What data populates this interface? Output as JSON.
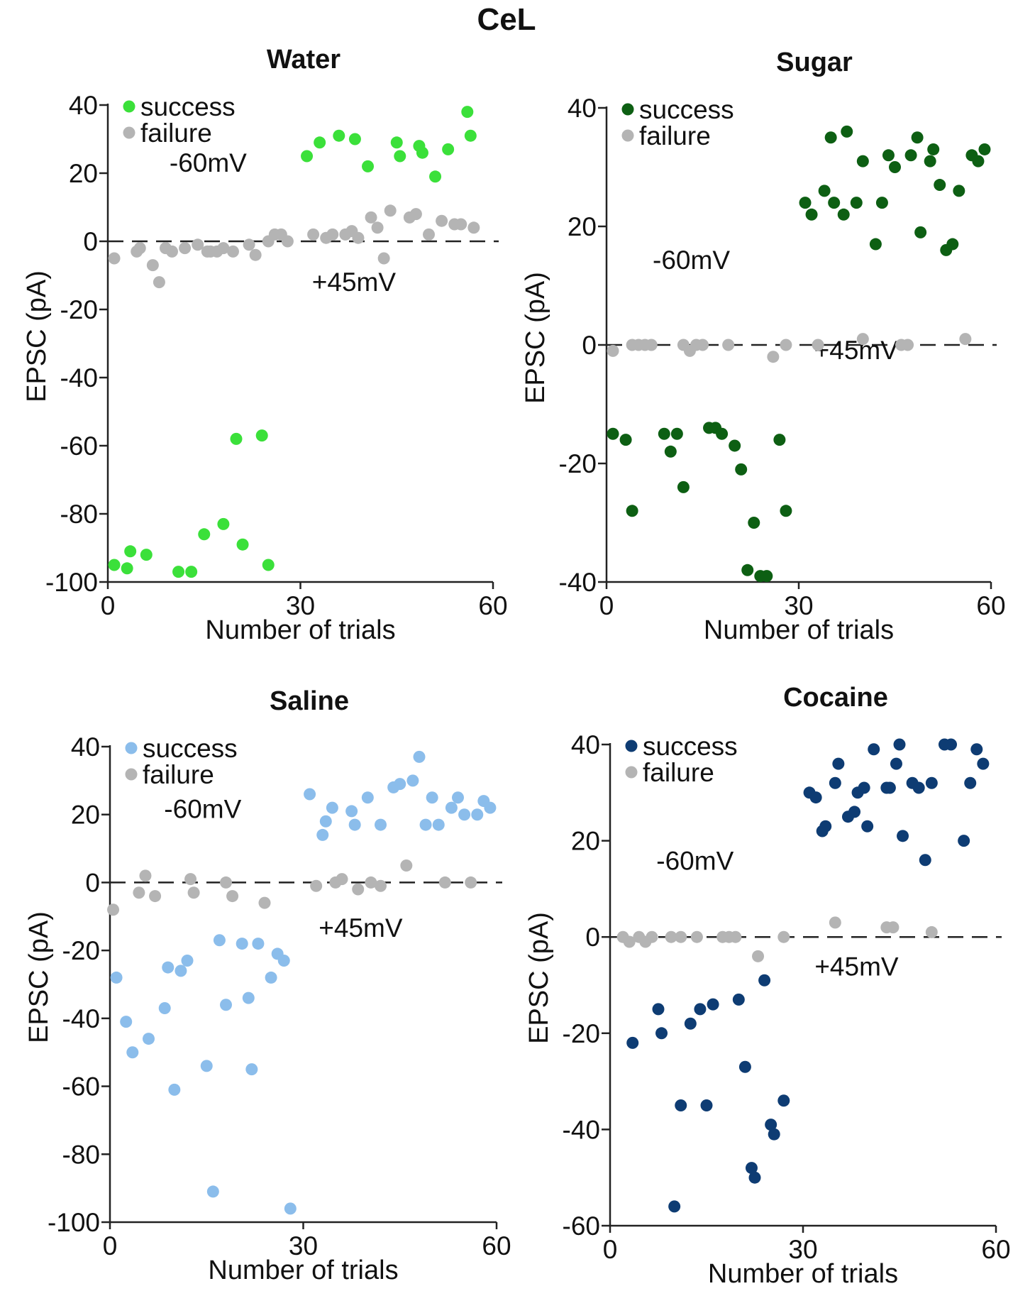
{
  "figure": {
    "title": "CeL"
  },
  "colors": {
    "failure": "#b4b4b4",
    "axis": "#222222",
    "zero_line": "#222222"
  },
  "chart_data": [
    {
      "type": "scatter",
      "title": "Water",
      "xlabel": "Number of trials",
      "ylabel": "EPSC (pA)",
      "xlim": [
        0,
        60
      ],
      "ylim": [
        -100,
        40
      ],
      "xticks": [
        0,
        30,
        60
      ],
      "yticks": [
        40,
        20,
        0,
        -20,
        -40,
        -60,
        -80,
        -100
      ],
      "legend_position": "top-left",
      "annotations": [
        "-60mV",
        "+45mV"
      ],
      "dashed_zero_line": true,
      "series": [
        {
          "name": "success",
          "color": "#3be03a",
          "points": [
            [
              1,
              -95
            ],
            [
              3,
              -96
            ],
            [
              3.5,
              -91
            ],
            [
              6,
              -92
            ],
            [
              11,
              -97
            ],
            [
              13,
              -97
            ],
            [
              15,
              -86
            ],
            [
              18,
              -83
            ],
            [
              21,
              -89
            ],
            [
              25,
              -95
            ],
            [
              20,
              -58
            ],
            [
              24,
              -57
            ],
            [
              31,
              25
            ],
            [
              33,
              29
            ],
            [
              36,
              31
            ],
            [
              38.5,
              30
            ],
            [
              40.5,
              22
            ],
            [
              45,
              29
            ],
            [
              45.5,
              25
            ],
            [
              48.5,
              28
            ],
            [
              49,
              26
            ],
            [
              51,
              19
            ],
            [
              53,
              27
            ],
            [
              56,
              38
            ],
            [
              56.5,
              31
            ]
          ]
        },
        {
          "name": "failure",
          "color": "#b4b4b4",
          "points": [
            [
              1,
              -5
            ],
            [
              4.5,
              -3
            ],
            [
              5,
              -2
            ],
            [
              7,
              -7
            ],
            [
              8,
              -12
            ],
            [
              9,
              -2
            ],
            [
              10,
              -3
            ],
            [
              12,
              -2
            ],
            [
              14,
              -1
            ],
            [
              15.5,
              -3
            ],
            [
              16,
              -3
            ],
            [
              17,
              -3
            ],
            [
              18,
              -2
            ],
            [
              19.5,
              -3
            ],
            [
              22,
              -1
            ],
            [
              23,
              -4
            ],
            [
              25,
              0
            ],
            [
              26,
              2
            ],
            [
              27,
              2
            ],
            [
              28,
              0
            ],
            [
              32,
              2
            ],
            [
              34,
              1
            ],
            [
              35,
              2
            ],
            [
              37,
              2
            ],
            [
              38,
              3
            ],
            [
              39,
              1
            ],
            [
              41,
              7
            ],
            [
              42,
              4
            ],
            [
              43,
              -5
            ],
            [
              44,
              9
            ],
            [
              47,
              7
            ],
            [
              48,
              8
            ],
            [
              50,
              2
            ],
            [
              52,
              6
            ],
            [
              54,
              5
            ],
            [
              55,
              5
            ],
            [
              57,
              4
            ]
          ]
        }
      ]
    },
    {
      "type": "scatter",
      "title": "Sugar",
      "xlabel": "Number of trials",
      "ylabel": "EPSC (pA)",
      "xlim": [
        0,
        60
      ],
      "ylim": [
        -40,
        40
      ],
      "xticks": [
        0,
        30,
        60
      ],
      "yticks": [
        40,
        20,
        0,
        -20,
        -40
      ],
      "legend_position": "top-left",
      "annotations": [
        "-60mV",
        "+45mV"
      ],
      "dashed_zero_line": true,
      "series": [
        {
          "name": "success",
          "color": "#0d5f13",
          "points": [
            [
              1,
              -15
            ],
            [
              3,
              -16
            ],
            [
              4,
              -28
            ],
            [
              9,
              -15
            ],
            [
              10,
              -18
            ],
            [
              11,
              -15
            ],
            [
              12,
              -24
            ],
            [
              16,
              -14
            ],
            [
              17,
              -14
            ],
            [
              18,
              -15
            ],
            [
              20,
              -17
            ],
            [
              21,
              -21
            ],
            [
              22,
              -38
            ],
            [
              23,
              -30
            ],
            [
              24,
              -39
            ],
            [
              25,
              -39
            ],
            [
              27,
              -16
            ],
            [
              28,
              -28
            ],
            [
              31,
              24
            ],
            [
              32,
              22
            ],
            [
              34,
              26
            ],
            [
              35,
              35
            ],
            [
              35.5,
              24
            ],
            [
              37,
              22
            ],
            [
              37.5,
              36
            ],
            [
              39,
              24
            ],
            [
              40,
              31
            ],
            [
              42,
              17
            ],
            [
              43,
              24
            ],
            [
              44,
              32
            ],
            [
              45,
              30
            ],
            [
              47.5,
              32
            ],
            [
              48.5,
              35
            ],
            [
              49,
              19
            ],
            [
              50.5,
              31
            ],
            [
              51,
              33
            ],
            [
              52,
              27
            ],
            [
              53,
              16
            ],
            [
              54,
              17
            ],
            [
              55,
              26
            ],
            [
              57,
              32
            ],
            [
              58,
              31
            ],
            [
              59,
              33
            ]
          ]
        },
        {
          "name": "failure",
          "color": "#b4b4b4",
          "points": [
            [
              1,
              -1
            ],
            [
              4,
              0
            ],
            [
              5,
              0
            ],
            [
              6,
              0
            ],
            [
              7,
              0
            ],
            [
              12,
              0
            ],
            [
              13,
              -1
            ],
            [
              14,
              0
            ],
            [
              15,
              0
            ],
            [
              19,
              0
            ],
            [
              26,
              -2
            ],
            [
              28,
              0
            ],
            [
              33,
              0
            ],
            [
              40,
              1
            ],
            [
              46,
              0
            ],
            [
              47,
              0
            ],
            [
              56,
              1
            ]
          ]
        }
      ]
    },
    {
      "type": "scatter",
      "title": "Saline",
      "xlabel": "Number of trials",
      "ylabel": "EPSC (pA)",
      "xlim": [
        0,
        60
      ],
      "ylim": [
        -100,
        40
      ],
      "xticks": [
        0,
        30,
        60
      ],
      "yticks": [
        40,
        20,
        0,
        -20,
        -40,
        -60,
        -80,
        -100
      ],
      "legend_position": "top-left",
      "annotations": [
        "-60mV",
        "+45mV"
      ],
      "dashed_zero_line": true,
      "series": [
        {
          "name": "success",
          "color": "#8bbdeb",
          "points": [
            [
              1,
              -28
            ],
            [
              2.5,
              -41
            ],
            [
              3.5,
              -50
            ],
            [
              6,
              -46
            ],
            [
              8.5,
              -37
            ],
            [
              9,
              -25
            ],
            [
              10,
              -61
            ],
            [
              11,
              -26
            ],
            [
              12,
              -23
            ],
            [
              15,
              -54
            ],
            [
              16,
              -91
            ],
            [
              17,
              -17
            ],
            [
              18,
              -36
            ],
            [
              20.5,
              -18
            ],
            [
              21.5,
              -34
            ],
            [
              22,
              -55
            ],
            [
              23,
              -18
            ],
            [
              25,
              -28
            ],
            [
              26,
              -21
            ],
            [
              27,
              -23
            ],
            [
              28,
              -96
            ],
            [
              31,
              26
            ],
            [
              33,
              14
            ],
            [
              33.5,
              18
            ],
            [
              34.5,
              22
            ],
            [
              37.5,
              21
            ],
            [
              38,
              17
            ],
            [
              40,
              25
            ],
            [
              42,
              17
            ],
            [
              44,
              28
            ],
            [
              45,
              29
            ],
            [
              47,
              30
            ],
            [
              48,
              37
            ],
            [
              49,
              17
            ],
            [
              50,
              25
            ],
            [
              51,
              17
            ],
            [
              53,
              22
            ],
            [
              54,
              25
            ],
            [
              55,
              20
            ],
            [
              57,
              20
            ],
            [
              58,
              24
            ],
            [
              59,
              22
            ]
          ]
        },
        {
          "name": "failure",
          "color": "#b4b4b4",
          "points": [
            [
              0.5,
              -8
            ],
            [
              4.5,
              -3
            ],
            [
              5.5,
              2
            ],
            [
              7,
              -4
            ],
            [
              12.5,
              1
            ],
            [
              13,
              -3
            ],
            [
              18,
              0
            ],
            [
              19,
              -4
            ],
            [
              24,
              -6
            ],
            [
              32,
              -1
            ],
            [
              35,
              0
            ],
            [
              36,
              1
            ],
            [
              38.5,
              -2
            ],
            [
              40.5,
              0
            ],
            [
              42,
              -1
            ],
            [
              46,
              5
            ],
            [
              52,
              0
            ],
            [
              56,
              0
            ]
          ]
        }
      ]
    },
    {
      "type": "scatter",
      "title": "Cocaine",
      "xlabel": "Number of trials",
      "ylabel": "EPSC (pA)",
      "xlim": [
        0,
        60
      ],
      "ylim": [
        -60,
        40
      ],
      "xticks": [
        0,
        30,
        60
      ],
      "yticks": [
        40,
        20,
        0,
        -20,
        -40,
        -60
      ],
      "legend_position": "top-left",
      "annotations": [
        "-60mV",
        "+45mV"
      ],
      "dashed_zero_line": true,
      "series": [
        {
          "name": "success",
          "color": "#0e3c73",
          "points": [
            [
              3.5,
              -22
            ],
            [
              7.5,
              -15
            ],
            [
              8,
              -20
            ],
            [
              10,
              -56
            ],
            [
              11,
              -35
            ],
            [
              12.5,
              -18
            ],
            [
              14,
              -15
            ],
            [
              15,
              -35
            ],
            [
              16,
              -14
            ],
            [
              20,
              -13
            ],
            [
              21,
              -27
            ],
            [
              22,
              -48
            ],
            [
              22.5,
              -50
            ],
            [
              24,
              -9
            ],
            [
              25,
              -39
            ],
            [
              25.5,
              -41
            ],
            [
              27,
              -34
            ],
            [
              31,
              30
            ],
            [
              32,
              29
            ],
            [
              33,
              22
            ],
            [
              33.5,
              23
            ],
            [
              35,
              32
            ],
            [
              35.5,
              36
            ],
            [
              37,
              25
            ],
            [
              38,
              26
            ],
            [
              38.5,
              30
            ],
            [
              39.5,
              31
            ],
            [
              40,
              23
            ],
            [
              41,
              39
            ],
            [
              43,
              31
            ],
            [
              43.5,
              31
            ],
            [
              44.5,
              36
            ],
            [
              45,
              40
            ],
            [
              45.5,
              21
            ],
            [
              47,
              32
            ],
            [
              48,
              31
            ],
            [
              49,
              16
            ],
            [
              50,
              32
            ],
            [
              52,
              40
            ],
            [
              53,
              40
            ],
            [
              55,
              20
            ],
            [
              56,
              32
            ],
            [
              57,
              39
            ],
            [
              58,
              36
            ]
          ]
        },
        {
          "name": "failure",
          "color": "#b4b4b4",
          "points": [
            [
              2,
              0
            ],
            [
              3,
              -1
            ],
            [
              4.5,
              0
            ],
            [
              5.5,
              -1
            ],
            [
              6.5,
              0
            ],
            [
              9.5,
              0
            ],
            [
              11,
              0
            ],
            [
              13.5,
              0
            ],
            [
              17.5,
              0
            ],
            [
              18.5,
              0
            ],
            [
              19.5,
              0
            ],
            [
              23,
              -4
            ],
            [
              27,
              0
            ],
            [
              35,
              3
            ],
            [
              43,
              2
            ],
            [
              44,
              2
            ],
            [
              50,
              1
            ]
          ]
        }
      ]
    }
  ]
}
